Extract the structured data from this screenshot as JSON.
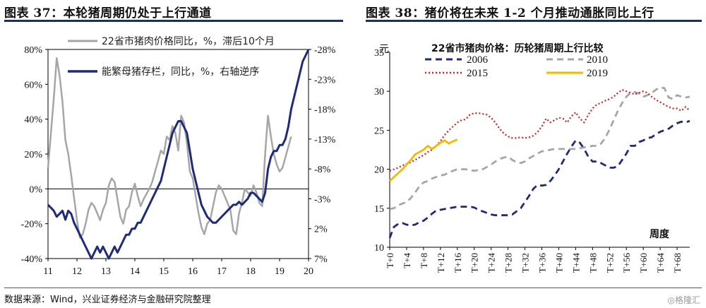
{
  "left_title": "图表 37：本轮猪周期仍处于上行通道",
  "right_title": "图表 38：猪价将在未来 1-2 个月推动通胀同比上行",
  "footer": "数据来源：Wind，兴业证券经济与金融研究院整理",
  "watermark": "◎格隆汇",
  "colors": {
    "grey": "#a6a6a6",
    "navy": "#1f2a7a",
    "red": "#d21e1e",
    "gold": "#f5b800",
    "title_rule": "#1f2f5a"
  },
  "chart_data": [
    {
      "type": "line",
      "legend_position": "top-right",
      "x_tick_labels": [
        "11",
        "12",
        "13",
        "14",
        "15",
        "16",
        "17",
        "18",
        "19",
        "20"
      ],
      "xlim": [
        11,
        20
      ],
      "left_axis": {
        "ticks": [
          "80%",
          "60%",
          "40%",
          "20%",
          "0%",
          "-20%",
          "-40%"
        ],
        "ylim": [
          -40,
          80
        ]
      },
      "right_axis": {
        "ticks": [
          "-28%",
          "-23%",
          "-18%",
          "-13%",
          "-8%",
          "-3%",
          "2%",
          "7%"
        ],
        "ylim": [
          -28,
          7
        ],
        "inverted": true
      },
      "series": [
        {
          "name": "22省市猪肉价格同比，%，滞后10个月",
          "color": "grey",
          "axis": "left",
          "x": [
            11.0,
            11.1,
            11.2,
            11.3,
            11.4,
            11.5,
            11.6,
            11.7,
            11.8,
            11.9,
            12.0,
            12.1,
            12.2,
            12.3,
            12.4,
            12.5,
            12.6,
            12.7,
            12.8,
            12.9,
            13.0,
            13.1,
            13.2,
            13.3,
            13.4,
            13.5,
            13.6,
            13.7,
            13.8,
            13.9,
            14.0,
            14.1,
            14.2,
            14.3,
            14.4,
            14.5,
            14.6,
            14.7,
            14.8,
            14.9,
            15.0,
            15.1,
            15.2,
            15.3,
            15.4,
            15.5,
            15.6,
            15.7,
            15.8,
            15.9,
            16.0,
            16.1,
            16.2,
            16.3,
            16.4,
            16.5,
            16.6,
            16.7,
            16.8,
            16.9,
            17.0,
            17.1,
            17.2,
            17.3,
            17.4,
            17.5,
            17.6,
            17.7,
            17.8,
            17.9,
            18.0,
            18.1,
            18.2,
            18.3,
            18.4,
            18.5,
            18.6,
            18.7,
            18.8,
            18.9,
            19.0,
            19.1,
            19.2,
            19.3,
            19.4
          ],
          "values": [
            12,
            32,
            52,
            75,
            65,
            50,
            28,
            20,
            8,
            -5,
            -18,
            -28,
            -26,
            -20,
            -12,
            -8,
            -10,
            -14,
            -18,
            -12,
            -8,
            2,
            6,
            4,
            -6,
            -16,
            -20,
            -12,
            -10,
            -2,
            3,
            -4,
            -10,
            -6,
            -3,
            0,
            4,
            10,
            16,
            22,
            20,
            30,
            28,
            36,
            32,
            22,
            42,
            38,
            26,
            10,
            6,
            -4,
            -14,
            -22,
            -26,
            -20,
            -18,
            -10,
            -2,
            2,
            0,
            -4,
            -8,
            -12,
            -24,
            -26,
            -14,
            -8,
            0,
            -2,
            -4,
            2,
            -2,
            -8,
            -10,
            20,
            42,
            30,
            20,
            14,
            10,
            12,
            18,
            24,
            30
          ]
        },
        {
          "name": "能繁母猪存栏，同比，%，右轴逆序",
          "color": "navy",
          "axis": "right",
          "x": [
            11.0,
            11.1,
            11.2,
            11.3,
            11.4,
            11.5,
            11.6,
            11.7,
            11.8,
            11.9,
            12.0,
            12.1,
            12.2,
            12.3,
            12.4,
            12.5,
            12.6,
            12.7,
            12.8,
            12.9,
            13.0,
            13.1,
            13.2,
            13.3,
            13.4,
            13.5,
            13.6,
            13.7,
            13.8,
            13.9,
            14.0,
            14.1,
            14.2,
            14.3,
            14.4,
            14.5,
            14.6,
            14.7,
            14.8,
            14.9,
            15.0,
            15.1,
            15.2,
            15.3,
            15.4,
            15.5,
            15.6,
            15.7,
            15.8,
            15.9,
            16.0,
            16.1,
            16.2,
            16.3,
            16.4,
            16.5,
            16.6,
            16.7,
            16.8,
            16.9,
            17.0,
            17.1,
            17.2,
            17.3,
            17.4,
            17.5,
            17.6,
            17.7,
            17.8,
            17.9,
            18.0,
            18.1,
            18.2,
            18.3,
            18.4,
            18.5,
            18.6,
            18.7,
            18.8,
            18.9,
            19.0,
            19.1,
            19.2,
            19.3,
            19.4,
            19.5,
            19.6,
            19.7,
            19.8,
            19.9,
            20.0
          ],
          "values": [
            -2,
            -1.5,
            -1,
            0,
            -0.5,
            -1,
            0.5,
            -1,
            -0.5,
            1,
            2,
            3,
            4,
            5,
            6,
            7,
            6,
            5,
            6,
            5,
            6,
            7,
            6,
            5,
            6,
            5,
            4,
            3,
            3,
            2,
            2,
            1,
            1,
            0,
            -1,
            -2,
            -3,
            -4,
            -5,
            -6,
            -8,
            -10,
            -12,
            -14,
            -15,
            -16,
            -16,
            -15,
            -14,
            -11,
            -8,
            -6,
            -4,
            -2,
            -1,
            0,
            0.5,
            1,
            1,
            0.5,
            0,
            -0.5,
            -1,
            -1.5,
            -2,
            -2,
            -2.5,
            -2,
            -2.5,
            -3,
            -4,
            -4,
            -3.5,
            -3,
            -2.5,
            -4,
            -8,
            -10,
            -11,
            -11,
            -12,
            -12,
            -13,
            -15,
            -18,
            -20,
            -22,
            -24,
            -26,
            -27,
            -28
          ]
        }
      ]
    },
    {
      "type": "line",
      "title": "22省市猪肉价格：历轮猪周期上行比较",
      "xlabel": "周度",
      "legend_position": "top",
      "y_unit_label": "元",
      "ylim": [
        10,
        35
      ],
      "y_ticks": [
        "35",
        "30",
        "25",
        "20",
        "15",
        "10"
      ],
      "x_tick_labels": [
        "T+0",
        "T+4",
        "T+8",
        "T+12",
        "T+16",
        "T+20",
        "T+24",
        "T+28",
        "T+32",
        "T+36",
        "T+40",
        "T+44",
        "T+48",
        "T+52",
        "T+56",
        "T+60",
        "T+64",
        "T+68"
      ],
      "xlim": [
        0,
        71
      ],
      "series": [
        {
          "name": "2006",
          "color": "navy",
          "style": "dashed",
          "x": [
            0,
            1,
            2,
            3,
            4,
            5,
            6,
            7,
            8,
            9,
            10,
            11,
            12,
            13,
            14,
            15,
            16,
            17,
            18,
            19,
            20,
            21,
            22,
            23,
            24,
            25,
            26,
            27,
            28,
            29,
            30,
            31,
            32,
            33,
            34,
            35,
            36,
            37,
            38,
            39,
            40,
            41,
            42,
            43,
            44,
            45,
            46,
            47,
            48,
            49,
            50,
            51,
            52,
            53,
            54,
            55,
            56,
            57,
            58,
            59,
            60,
            61,
            62,
            63,
            64,
            65,
            66,
            67,
            68,
            69,
            70,
            71
          ],
          "values": [
            11.2,
            12.6,
            13.0,
            13.1,
            12.9,
            12.8,
            12.9,
            13.2,
            13.4,
            13.8,
            14.3,
            14.7,
            14.8,
            14.9,
            15.0,
            15.1,
            15.2,
            15.2,
            15.2,
            15.2,
            15.1,
            14.8,
            14.6,
            14.4,
            14.2,
            14.1,
            14.1,
            14.1,
            14.1,
            14.2,
            14.6,
            15.0,
            15.8,
            16.6,
            17.5,
            18.0,
            17.9,
            18.0,
            18.5,
            19.2,
            20.0,
            21.0,
            22.0,
            22.9,
            23.7,
            23.4,
            22.6,
            21.6,
            21.0,
            21.0,
            20.8,
            20.5,
            20.2,
            20.2,
            20.4,
            21.2,
            22.0,
            23.0,
            23.0,
            23.5,
            23.7,
            24.0,
            24.1,
            24.5,
            24.8,
            25.0,
            25.2,
            25.6,
            25.9,
            26.1,
            26.0,
            26.2
          ]
        },
        {
          "name": "2010",
          "color": "grey",
          "style": "dashed",
          "x": [
            0,
            1,
            2,
            3,
            4,
            5,
            6,
            7,
            8,
            9,
            10,
            11,
            12,
            13,
            14,
            15,
            16,
            17,
            18,
            19,
            20,
            21,
            22,
            23,
            24,
            25,
            26,
            27,
            28,
            29,
            30,
            31,
            32,
            33,
            34,
            35,
            36,
            37,
            38,
            39,
            40,
            41,
            42,
            43,
            44,
            45,
            46,
            47,
            48,
            49,
            50,
            51,
            52,
            53,
            54,
            55,
            56,
            57,
            58,
            59,
            60,
            61,
            62,
            63,
            64,
            65,
            66,
            67,
            68,
            69,
            70,
            71
          ],
          "values": [
            14.9,
            15.0,
            15.4,
            15.6,
            15.8,
            16.3,
            17.0,
            17.8,
            18.3,
            18.5,
            18.8,
            19.0,
            19.2,
            19.3,
            19.6,
            19.8,
            20.0,
            20.0,
            20.0,
            19.9,
            19.8,
            19.9,
            20.0,
            20.3,
            20.6,
            21.0,
            21.3,
            21.5,
            21.6,
            21.2,
            20.9,
            20.8,
            21.0,
            21.4,
            21.7,
            22.0,
            22.3,
            22.4,
            22.5,
            22.6,
            22.6,
            22.6,
            22.6,
            22.6,
            22.6,
            22.7,
            22.8,
            22.9,
            23.0,
            23.0,
            23.3,
            24.0,
            25.1,
            26.3,
            27.5,
            28.5,
            29.3,
            29.8,
            29.9,
            29.7,
            29.3,
            29.5,
            29.8,
            30.2,
            30.5,
            30.4,
            29.2,
            29.0,
            29.5,
            29.3,
            29.2,
            29.3
          ]
        },
        {
          "name": "2015",
          "color": "red",
          "style": "dotted",
          "x": [
            0,
            1,
            2,
            3,
            4,
            5,
            6,
            7,
            8,
            9,
            10,
            11,
            12,
            13,
            14,
            15,
            16,
            17,
            18,
            19,
            20,
            21,
            22,
            23,
            24,
            25,
            26,
            27,
            28,
            29,
            30,
            31,
            32,
            33,
            34,
            35,
            36,
            37,
            38,
            39,
            40,
            41,
            42,
            43,
            44,
            45,
            46,
            47,
            48,
            49,
            50,
            51,
            52,
            53,
            54,
            55,
            56,
            57,
            58,
            59,
            60,
            61,
            62,
            63,
            64,
            65,
            66,
            67,
            68,
            69,
            70,
            71
          ],
          "values": [
            19.8,
            20.0,
            20.2,
            20.5,
            20.7,
            20.9,
            21.2,
            21.5,
            21.8,
            22.2,
            22.5,
            23.0,
            23.6,
            24.4,
            25.0,
            25.5,
            26.0,
            26.3,
            26.4,
            27.0,
            27.2,
            27.2,
            27.1,
            27.0,
            26.6,
            26.0,
            25.2,
            24.6,
            24.2,
            24.0,
            24.0,
            24.1,
            24.0,
            24.1,
            24.3,
            24.8,
            25.5,
            26.5,
            26.0,
            26.3,
            26.6,
            26.5,
            26.0,
            26.8,
            27.3,
            26.5,
            26.0,
            27.0,
            27.8,
            28.3,
            28.5,
            28.8,
            29.0,
            29.3,
            29.8,
            30.2,
            30.0,
            29.8,
            29.6,
            29.8,
            30.0,
            29.8,
            29.3,
            28.9,
            28.6,
            28.3,
            28.0,
            27.8,
            27.8,
            27.5,
            28.0,
            27.5
          ]
        },
        {
          "name": "2019",
          "color": "gold",
          "style": "solid",
          "x": [
            0,
            1,
            2,
            3,
            4,
            5,
            6,
            7,
            8,
            9,
            10,
            11,
            12,
            13,
            14,
            15,
            16
          ],
          "values": [
            18.5,
            19.0,
            19.5,
            20.0,
            20.6,
            21.2,
            21.9,
            22.2,
            22.5,
            23.0,
            22.6,
            23.0,
            23.4,
            23.7,
            23.3,
            23.6,
            23.8
          ]
        }
      ]
    }
  ]
}
